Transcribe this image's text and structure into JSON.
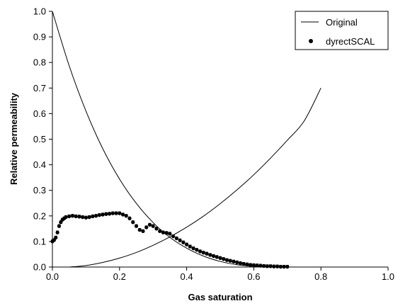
{
  "chart_data": {
    "type": "scatter",
    "title": "",
    "xlabel": "Gas saturation",
    "ylabel": "Relative permeability",
    "xlim": [
      0.0,
      1.0
    ],
    "ylim": [
      0.0,
      1.0
    ],
    "grid": false,
    "legend_position": "top-right",
    "x_ticks": [
      "0.0",
      "0.2",
      "0.4",
      "0.6",
      "0.8",
      "1.0"
    ],
    "y_ticks": [
      "0.0",
      "0.1",
      "0.2",
      "0.3",
      "0.4",
      "0.5",
      "0.6",
      "0.7",
      "0.8",
      "0.9",
      "1.0"
    ],
    "series": [
      {
        "name": "Original",
        "kind": "line",
        "color": "#000000",
        "curves": [
          {
            "x": [
              0.0,
              0.05,
              0.1,
              0.15,
              0.2,
              0.25,
              0.3,
              0.35,
              0.4,
              0.45,
              0.5,
              0.55,
              0.6,
              0.65,
              0.7
            ],
            "y": [
              1.0,
              0.787,
              0.61,
              0.463,
              0.344,
              0.249,
              0.174,
              0.116,
              0.074,
              0.043,
              0.022,
              0.009,
              0.003,
              0.001,
              0.0
            ]
          },
          {
            "x": [
              0.05,
              0.1,
              0.15,
              0.2,
              0.25,
              0.3,
              0.35,
              0.4,
              0.45,
              0.5,
              0.55,
              0.6,
              0.65,
              0.7,
              0.75,
              0.8
            ],
            "y": [
              0.0,
              0.006,
              0.018,
              0.035,
              0.057,
              0.085,
              0.118,
              0.156,
              0.199,
              0.248,
              0.302,
              0.361,
              0.426,
              0.496,
              0.571,
              0.7
            ]
          }
        ]
      },
      {
        "name": "dyrectSCAL",
        "kind": "points",
        "color": "#000000",
        "x": [
          0.0,
          0.005,
          0.01,
          0.015,
          0.02,
          0.025,
          0.03,
          0.035,
          0.04,
          0.05,
          0.06,
          0.07,
          0.08,
          0.09,
          0.1,
          0.11,
          0.12,
          0.13,
          0.14,
          0.15,
          0.16,
          0.17,
          0.18,
          0.19,
          0.2,
          0.21,
          0.22,
          0.23,
          0.24,
          0.25,
          0.26,
          0.27,
          0.28,
          0.29,
          0.3,
          0.31,
          0.32,
          0.33,
          0.34,
          0.35,
          0.36,
          0.37,
          0.38,
          0.39,
          0.4,
          0.41,
          0.42,
          0.43,
          0.44,
          0.45,
          0.46,
          0.47,
          0.48,
          0.49,
          0.5,
          0.51,
          0.52,
          0.53,
          0.54,
          0.55,
          0.56,
          0.57,
          0.58,
          0.59,
          0.6,
          0.61,
          0.62,
          0.63,
          0.64,
          0.65,
          0.66,
          0.67,
          0.68,
          0.69,
          0.7
        ],
        "y": [
          0.1,
          0.105,
          0.115,
          0.135,
          0.16,
          0.175,
          0.185,
          0.19,
          0.195,
          0.198,
          0.2,
          0.198,
          0.197,
          0.195,
          0.193,
          0.195,
          0.198,
          0.2,
          0.203,
          0.205,
          0.207,
          0.208,
          0.21,
          0.21,
          0.21,
          0.205,
          0.2,
          0.19,
          0.175,
          0.16,
          0.145,
          0.14,
          0.155,
          0.165,
          0.16,
          0.15,
          0.14,
          0.135,
          0.133,
          0.13,
          0.12,
          0.112,
          0.104,
          0.096,
          0.088,
          0.08,
          0.073,
          0.067,
          0.061,
          0.056,
          0.052,
          0.047,
          0.043,
          0.039,
          0.035,
          0.031,
          0.027,
          0.024,
          0.021,
          0.018,
          0.015,
          0.012,
          0.01,
          0.008,
          0.007,
          0.006,
          0.005,
          0.004,
          0.003,
          0.003,
          0.002,
          0.002,
          0.001,
          0.001,
          0.001
        ],
        "error": 0.006
      }
    ]
  }
}
